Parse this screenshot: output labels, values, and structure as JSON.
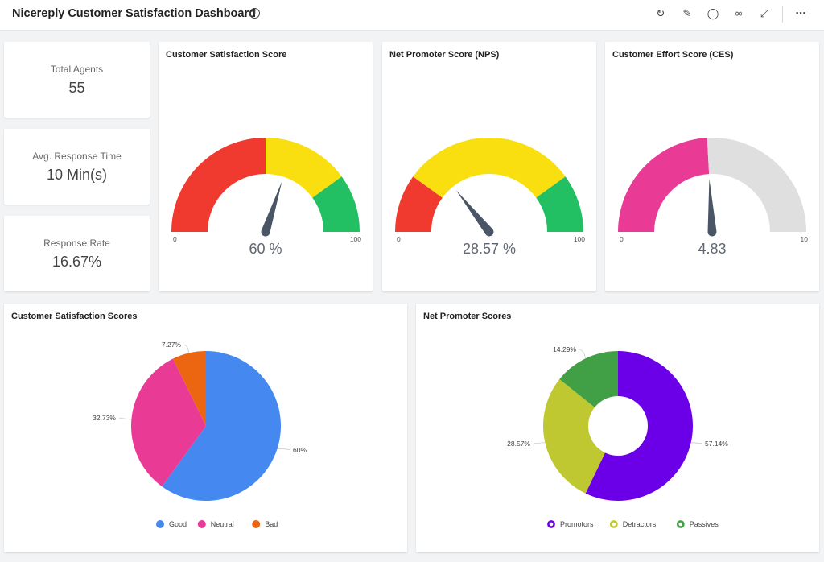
{
  "header": {
    "title": "Nicereply Customer Satisfaction Dashboard",
    "info_icon": "info-icon",
    "toolbar_icons": [
      "refresh-icon",
      "edit-icon",
      "comment-icon",
      "glasses-icon",
      "expand-icon",
      "more-icon"
    ]
  },
  "kpis": [
    {
      "label": "Total Agents",
      "value": "55"
    },
    {
      "label": "Avg. Response Time",
      "value": "10 Min(s)"
    },
    {
      "label": "Response Rate",
      "value": "16.67%"
    }
  ],
  "chart_data": [
    {
      "type": "gauge",
      "title": "Customer Satisfaction Score",
      "min": 0,
      "max": 100,
      "min_label": "0",
      "max_label": "100",
      "value": 60,
      "value_label": "60 %",
      "bands": [
        {
          "from": 0,
          "to": 50,
          "color": "#f0392f"
        },
        {
          "from": 50,
          "to": 80,
          "color": "#f9df10"
        },
        {
          "from": 80,
          "to": 100,
          "color": "#22c062"
        }
      ]
    },
    {
      "type": "gauge",
      "title": "Net Promoter Score (NPS)",
      "min": 0,
      "max": 100,
      "min_label": "0",
      "max_label": "100",
      "value": 28.57,
      "value_label": "28.57 %",
      "bands": [
        {
          "from": 0,
          "to": 20,
          "color": "#f0392f"
        },
        {
          "from": 20,
          "to": 80,
          "color": "#f9df10"
        },
        {
          "from": 80,
          "to": 100,
          "color": "#22c062"
        }
      ]
    },
    {
      "type": "gauge",
      "title": "Customer Effort Score (CES)",
      "min": 0,
      "max": 10,
      "min_label": "0",
      "max_label": "10",
      "value": 4.83,
      "value_label": "4.83",
      "bands": [
        {
          "from": 0,
          "to": 4.83,
          "color": "#e93a96"
        },
        {
          "from": 4.83,
          "to": 10,
          "color": "#dfdfdf"
        }
      ]
    },
    {
      "type": "pie",
      "title": "Customer Satisfaction Scores",
      "slices": [
        {
          "name": "Good",
          "value": 60,
          "label": "60%",
          "color": "#4588f0"
        },
        {
          "name": "Neutral",
          "value": 32.73,
          "label": "32.73%",
          "color": "#e93a96"
        },
        {
          "name": "Bad",
          "value": 7.27,
          "label": "7.27%",
          "color": "#ec6510"
        }
      ]
    },
    {
      "type": "donut",
      "title": "Net Promoter Scores",
      "slices": [
        {
          "name": "Promotors",
          "value": 57.14,
          "label": "57.14%",
          "color": "#6b00e8"
        },
        {
          "name": "Detractors",
          "value": 28.57,
          "label": "28.57%",
          "color": "#c0c831"
        },
        {
          "name": "Passives",
          "value": 14.29,
          "label": "14.29%",
          "color": "#419f45"
        }
      ]
    }
  ]
}
